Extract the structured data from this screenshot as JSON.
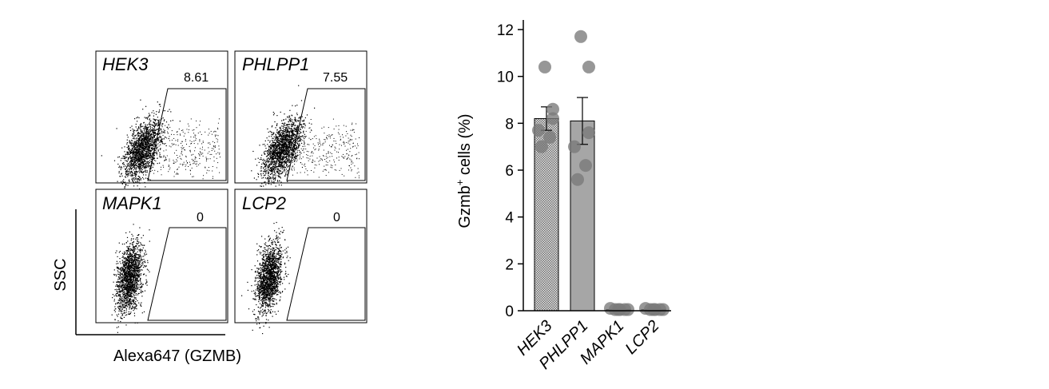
{
  "chart_data": [
    {
      "type": "scatter",
      "xlabel": "Alexa647 (GZMB)",
      "ylabel": "SSC",
      "panels": [
        {
          "name": "HEK3",
          "gate_value": "8.61"
        },
        {
          "name": "PHLPP1",
          "gate_value": "7.55"
        },
        {
          "name": "MAPK1",
          "gate_value": "0"
        },
        {
          "name": "LCP2",
          "gate_value": "0"
        }
      ]
    },
    {
      "type": "bar",
      "ylabel_main": "Gzmb",
      "ylabel_sup": "+",
      "ylabel_rest": " cells (%)",
      "categories": [
        "HEK3",
        "PHLPP1",
        "MAPK1",
        "LCP2"
      ],
      "values": [
        8.2,
        8.1,
        0.05,
        0.05
      ],
      "error": [
        0.5,
        1.0,
        0.02,
        0.02
      ],
      "points": [
        [
          10.4,
          8.6,
          8.2,
          7.7,
          7.4,
          7.0
        ],
        [
          11.7,
          10.4,
          7.6,
          7.0,
          6.2,
          5.6
        ],
        [
          0.1,
          0.05,
          0.05,
          0.05,
          0.05,
          0.05
        ],
        [
          0.1,
          0.05,
          0.05,
          0.05,
          0.05,
          0.05
        ]
      ],
      "bar_fills": [
        "#c8c8c8",
        "#a6a6a6",
        "#a6a6a6",
        "#a6a6a6"
      ],
      "point_color": "#7a7a7a",
      "ylim": [
        0,
        12
      ],
      "yticks": [
        0,
        2,
        4,
        6,
        8,
        10,
        12
      ],
      "grid": false
    }
  ]
}
